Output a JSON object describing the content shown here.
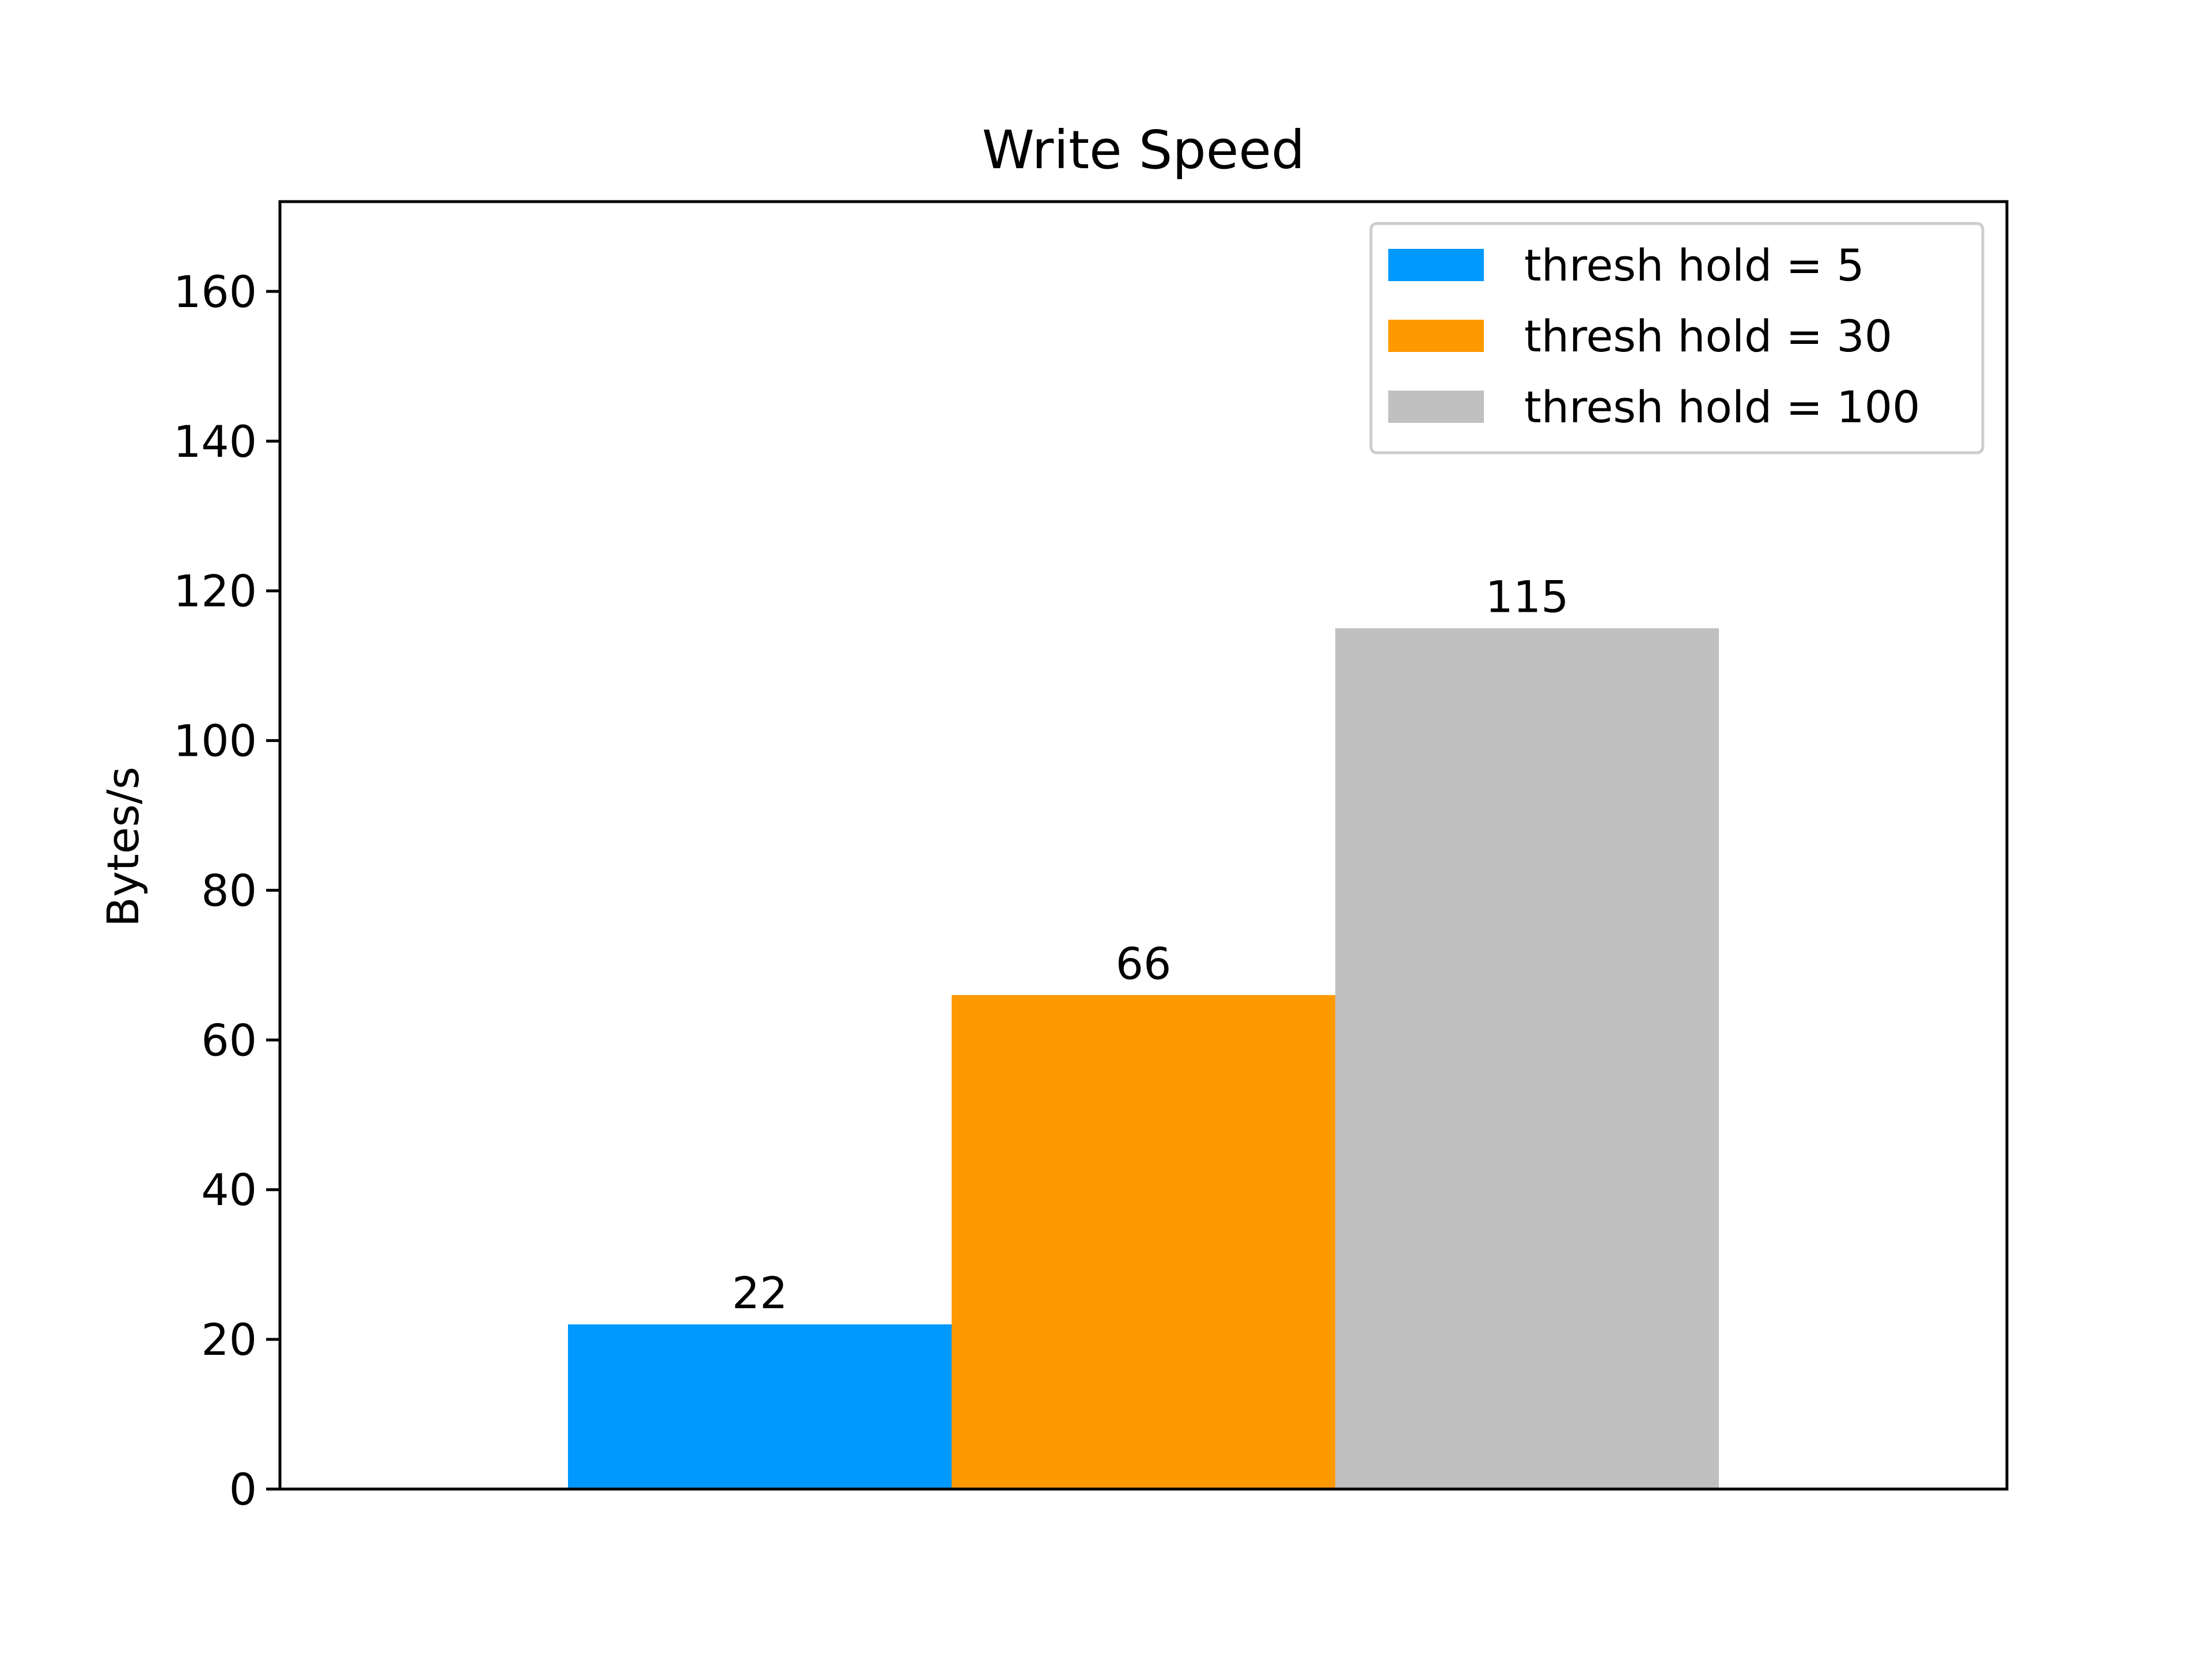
{
  "chart_data": {
    "type": "bar",
    "title": "Write Speed",
    "xlabel": "",
    "ylabel": "Bytes/s",
    "ylim": [
      0,
      172
    ],
    "yticks": [
      0,
      20,
      40,
      60,
      80,
      100,
      120,
      140,
      160
    ],
    "grid": false,
    "legend_position": "top-right",
    "series": [
      {
        "name": "thresh hold = 5",
        "value": 22,
        "label": "22",
        "color": "#0099ff"
      },
      {
        "name": "thresh hold = 30",
        "value": 66,
        "label": "66",
        "color": "#ff9900"
      },
      {
        "name": "thresh hold = 100",
        "value": 115,
        "label": "115",
        "color": "#c0c0c0"
      }
    ]
  }
}
